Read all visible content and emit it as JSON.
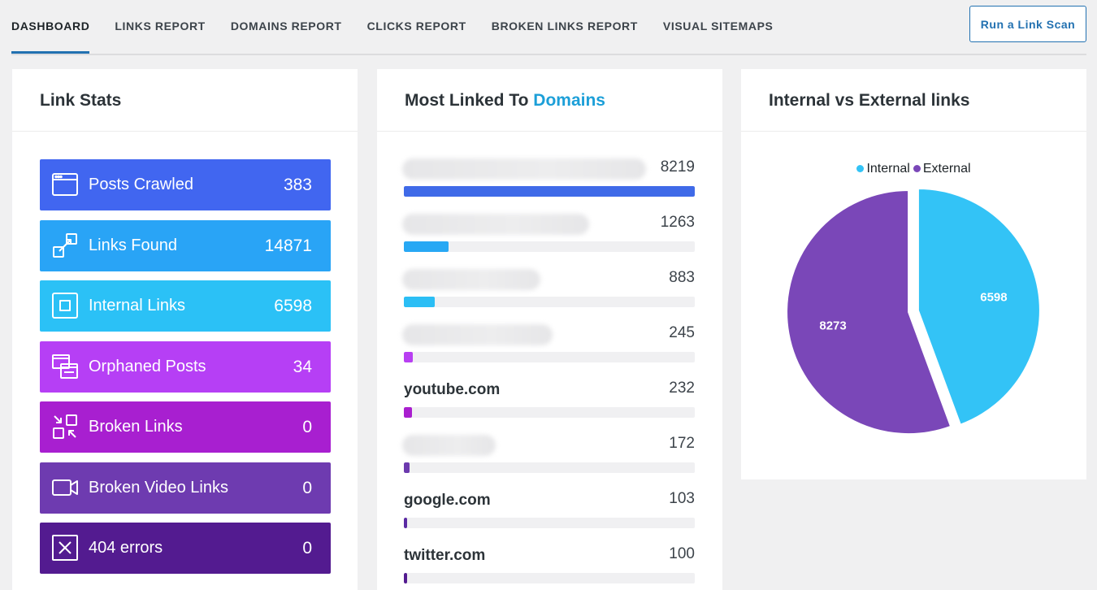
{
  "nav": {
    "tabs": [
      "DASHBOARD",
      "LINKS REPORT",
      "DOMAINS REPORT",
      "CLICKS REPORT",
      "BROKEN LINKS REPORT",
      "VISUAL SITEMAPS"
    ],
    "active_tab": "DASHBOARD",
    "scan_button": "Run a Link Scan"
  },
  "link_stats": {
    "title": "Link Stats",
    "items": [
      {
        "label": "Posts Crawled",
        "value": "383",
        "icon": "browser-window-icon",
        "color": "#4166f0"
      },
      {
        "label": "Links Found",
        "value": "14871",
        "icon": "link-expand-icon",
        "color": "#29a4f6"
      },
      {
        "label": "Internal Links",
        "value": "6598",
        "icon": "inner-square-icon",
        "color": "#2bc1f6"
      },
      {
        "label": "Orphaned Posts",
        "value": "34",
        "icon": "stacked-windows-icon",
        "color": "#b63ff5"
      },
      {
        "label": "Broken Links",
        "value": "0",
        "icon": "broken-link-icon",
        "color": "#a81fd0"
      },
      {
        "label": "Broken Video Links",
        "value": "0",
        "icon": "video-camera-icon",
        "color": "#6e3bb0"
      },
      {
        "label": "404 errors",
        "value": "0",
        "icon": "x-box-icon",
        "color": "#531b90"
      }
    ]
  },
  "domains": {
    "title_prefix": "Most Linked To",
    "title_highlight": "Domains",
    "max_count": 8219,
    "items": [
      {
        "name": "",
        "count": "8219",
        "value": 8219,
        "color": "#3f6ae8"
      },
      {
        "name": "",
        "count": "1263",
        "value": 1263,
        "color": "#28a8f4"
      },
      {
        "name": "",
        "count": "883",
        "value": 883,
        "color": "#2bbef5"
      },
      {
        "name": "",
        "count": "245",
        "value": 245,
        "color": "#b83ff2"
      },
      {
        "name": "youtube.com",
        "count": "232",
        "value": 232,
        "color": "#a91fcf"
      },
      {
        "name": "",
        "count": "172",
        "value": 172,
        "color": "#6c3aae"
      },
      {
        "name": "google.com",
        "count": "103",
        "value": 103,
        "color": "#5a2aa3"
      },
      {
        "name": "twitter.com",
        "count": "100",
        "value": 100,
        "color": "#531b90"
      }
    ]
  },
  "pie": {
    "title": "Internal vs External links",
    "chart_data": {
      "type": "pie",
      "series": [
        {
          "name": "Internal",
          "value": 6598,
          "label": "6598",
          "color": "#33c3f6"
        },
        {
          "name": "External",
          "value": 8273,
          "label": "8273",
          "color": "#7a47b8"
        }
      ],
      "legend": "top-center"
    }
  }
}
